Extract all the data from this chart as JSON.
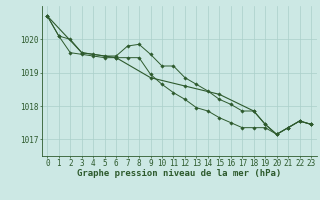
{
  "bg_color": "#cce8e4",
  "grid_color": "#aacfca",
  "line_color": "#2d5a2d",
  "marker_color": "#2d5a2d",
  "xlabel": "Graphe pression niveau de la mer (hPa)",
  "xlabel_fontsize": 6.5,
  "tick_fontsize": 5.5,
  "xlim": [
    -0.5,
    23.5
  ],
  "ylim": [
    1016.5,
    1021.0
  ],
  "yticks": [
    1017,
    1018,
    1019,
    1020
  ],
  "xticks": [
    0,
    1,
    2,
    3,
    4,
    5,
    6,
    7,
    8,
    9,
    10,
    11,
    12,
    13,
    14,
    15,
    16,
    17,
    18,
    19,
    20,
    21,
    22,
    23
  ],
  "series1": [
    1020.7,
    1020.1,
    1020.0,
    1019.6,
    1019.55,
    1019.5,
    1019.5,
    1019.8,
    1019.85,
    1019.55,
    1019.2,
    1019.2,
    1018.85,
    1018.65,
    1018.45,
    1018.2,
    1018.05,
    1017.85,
    1017.85,
    1017.45,
    1017.15,
    1017.35,
    1017.55,
    1017.45
  ],
  "series2": [
    1020.7,
    1020.1,
    1019.6,
    1019.55,
    1019.5,
    1019.45,
    1019.45,
    1019.45,
    1019.45,
    1018.95,
    1018.65,
    1018.4,
    1018.2,
    1017.95,
    1017.85,
    1017.65,
    1017.5,
    1017.35,
    1017.35,
    1017.35,
    1017.15,
    1017.35,
    1017.55,
    1017.45
  ],
  "series3_x": [
    0,
    3,
    6,
    9,
    12,
    15,
    18,
    19,
    20,
    21,
    22,
    23
  ],
  "series3_y": [
    1020.7,
    1019.6,
    1019.45,
    1018.85,
    1018.6,
    1018.35,
    1017.85,
    1017.45,
    1017.15,
    1017.35,
    1017.55,
    1017.45
  ]
}
